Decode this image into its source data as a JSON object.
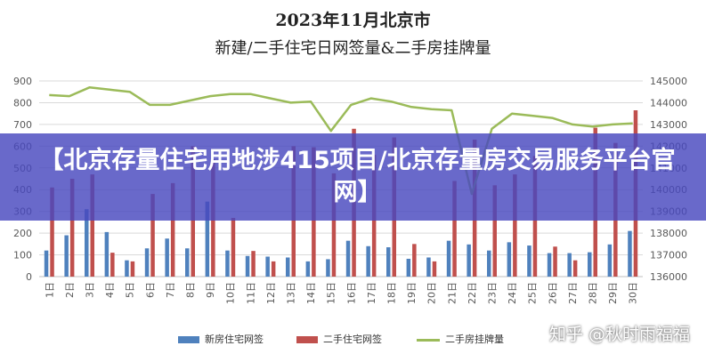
{
  "chart_data": {
    "type": "bar",
    "title": "2023年11月北京市",
    "subtitle": "新建/二手住宅日网签量&二手房挂牌量",
    "categories": [
      "1日",
      "2日",
      "3日",
      "4日",
      "5日",
      "6日",
      "7日",
      "8日",
      "9日",
      "10日",
      "11日",
      "12日",
      "13日",
      "14日",
      "15日",
      "16日",
      "17日",
      "18日",
      "19日",
      "20日",
      "21日",
      "22日",
      "23日",
      "24日",
      "25日",
      "26日",
      "27日",
      "28日",
      "29日",
      "30日"
    ],
    "series": [
      {
        "name": "新房住宅网签",
        "type": "bar",
        "axis": "left",
        "color": "#4f81bd",
        "values": [
          120,
          190,
          310,
          205,
          75,
          130,
          175,
          130,
          345,
          120,
          95,
          92,
          88,
          70,
          80,
          165,
          140,
          135,
          82,
          88,
          165,
          148,
          120,
          158,
          143,
          108,
          108,
          112,
          148,
          210
        ]
      },
      {
        "name": "二手住宅网签",
        "type": "bar",
        "axis": "left",
        "color": "#c0504d",
        "values": [
          410,
          450,
          470,
          110,
          70,
          380,
          430,
          600,
          540,
          270,
          118,
          70,
          600,
          595,
          475,
          680,
          560,
          640,
          150,
          70,
          440,
          630,
          420,
          470,
          555,
          138,
          75,
          685,
          615,
          765
        ]
      },
      {
        "name": "二手房挂牌量",
        "type": "line",
        "axis": "right",
        "color": "#9bbb59",
        "values": [
          144350,
          144300,
          144700,
          144600,
          144500,
          143900,
          143900,
          144100,
          144300,
          144400,
          144400,
          144200,
          144000,
          144050,
          142700,
          143900,
          144200,
          144050,
          143800,
          143700,
          143650,
          139800,
          142800,
          143500,
          143400,
          143300,
          143000,
          142900,
          143000,
          143050
        ]
      }
    ],
    "y_left": {
      "ylim": [
        0,
        900
      ],
      "ticks": [
        "0",
        "100",
        "200",
        "300",
        "400",
        "500",
        "600",
        "700",
        "800",
        "900"
      ]
    },
    "y_right": {
      "ylim": [
        136000,
        145000
      ],
      "ticks": [
        "136000",
        "137000",
        "138000",
        "139000",
        "140000",
        "141000",
        "142000",
        "143000",
        "144000",
        "145000"
      ]
    },
    "grid": true,
    "legend_position": "bottom"
  },
  "overlay": {
    "banner": "【北京存量住宅用地涉415项目/北京存量房交易服务平台官网】",
    "watermark": "知乎 @秋时雨福福"
  },
  "colors": {
    "bar_new": "#4f81bd",
    "bar_second": "#c0504d",
    "line": "#9bbb59",
    "banner": "#4848be"
  }
}
